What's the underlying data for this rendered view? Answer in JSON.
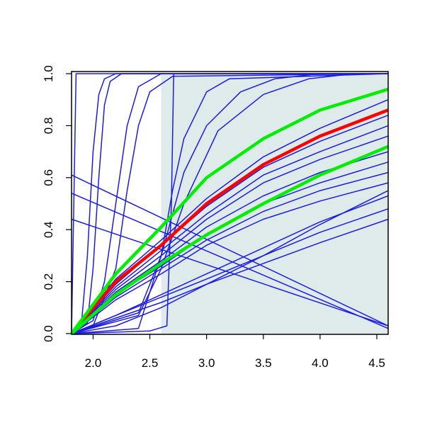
{
  "chart_data": {
    "type": "line",
    "xlim": [
      1.81,
      4.6
    ],
    "ylim": [
      0,
      1
    ],
    "xticks": [
      {
        "value": 2,
        "label": "2.0"
      },
      2.5,
      {
        "value": 3,
        "label": "3.0"
      },
      3.5,
      {
        "value": 4,
        "label": "4.0"
      },
      4.5
    ],
    "yticks": [
      {
        "value": 0,
        "label": "0.0"
      },
      0.2,
      0.4,
      0.6,
      0.8,
      {
        "value": 1,
        "label": "1.0"
      }
    ],
    "highlight": {
      "xmin": 2.6,
      "color": "#dfeaea"
    },
    "series": [
      {
        "color": "#1c1ce0",
        "width": 1.5,
        "x": [
          1.81,
          1.83,
          1.85,
          4.6
        ],
        "values": [
          0,
          0.5,
          1,
          1
        ]
      },
      {
        "color": "#1c1ce0",
        "width": 1.5,
        "x": [
          1.81,
          1.9,
          1.95,
          2.0,
          2.05,
          2.1,
          2.2,
          4.6
        ],
        "values": [
          0,
          0.05,
          0.3,
          0.7,
          0.92,
          0.98,
          1,
          1
        ]
      },
      {
        "color": "#1c1ce0",
        "width": 1.5,
        "x": [
          1.81,
          1.95,
          2.0,
          2.05,
          2.1,
          2.15,
          2.25,
          4.6
        ],
        "values": [
          0,
          0.04,
          0.25,
          0.6,
          0.88,
          0.97,
          1,
          1
        ]
      },
      {
        "color": "#1c1ce0",
        "width": 1.5,
        "x": [
          1.81,
          2.0,
          2.1,
          2.2,
          2.3,
          2.4,
          2.6,
          4.6
        ],
        "values": [
          0,
          0.05,
          0.2,
          0.5,
          0.8,
          0.95,
          1,
          1
        ]
      },
      {
        "color": "#1c1ce0",
        "width": 1.5,
        "x": [
          1.81,
          2.0,
          2.2,
          2.3,
          2.4,
          2.5,
          2.7,
          4.6
        ],
        "values": [
          0,
          0.03,
          0.25,
          0.55,
          0.8,
          0.93,
          0.99,
          1
        ]
      },
      {
        "color": "#1c1ce0",
        "width": 1.5,
        "x": [
          1.81,
          2.5,
          2.65,
          2.69,
          2.71,
          4.6
        ],
        "values": [
          0,
          0.01,
          0.03,
          0.5,
          1,
          1
        ]
      },
      {
        "color": "#1c1ce0",
        "width": 1.5,
        "x": [
          1.81,
          2.4,
          2.6,
          2.7,
          2.8,
          3.0,
          3.2,
          4.6
        ],
        "values": [
          0,
          0.02,
          0.3,
          0.55,
          0.75,
          0.93,
          0.98,
          1
        ]
      },
      {
        "color": "#1c1ce0",
        "width": 1.5,
        "x": [
          1.81,
          2.4,
          2.6,
          2.8,
          3.0,
          3.3,
          3.6,
          4.0,
          4.6
        ],
        "values": [
          0,
          0.08,
          0.3,
          0.62,
          0.8,
          0.93,
          0.98,
          1,
          1
        ]
      },
      {
        "color": "#1c1ce0",
        "width": 1.5,
        "x": [
          1.81,
          2.4,
          2.6,
          2.8,
          3.1,
          3.5,
          3.9,
          4.3,
          4.6
        ],
        "values": [
          0,
          0.07,
          0.25,
          0.5,
          0.78,
          0.92,
          0.98,
          1,
          1
        ]
      },
      {
        "color": "#1c1ce0",
        "width": 1.5,
        "x": [
          1.81,
          2.2,
          2.6,
          3.0,
          3.5,
          4.0,
          4.6
        ],
        "values": [
          0,
          0.21,
          0.36,
          0.52,
          0.68,
          0.79,
          0.9
        ]
      },
      {
        "color": "#1c1ce0",
        "width": 1.5,
        "x": [
          1.81,
          2.2,
          2.6,
          3.0,
          3.5,
          4.0,
          4.6
        ],
        "values": [
          0,
          0.19,
          0.34,
          0.49,
          0.64,
          0.74,
          0.84
        ]
      },
      {
        "color": "#1c1ce0",
        "width": 1.5,
        "x": [
          1.81,
          2.2,
          2.6,
          3.0,
          3.5,
          4.0,
          4.6
        ],
        "values": [
          0,
          0.18,
          0.32,
          0.46,
          0.61,
          0.7,
          0.8
        ]
      },
      {
        "color": "#1c1ce0",
        "width": 1.5,
        "x": [
          1.81,
          2.2,
          2.6,
          3.0,
          3.5,
          4.0,
          4.6
        ],
        "values": [
          0,
          0.17,
          0.3,
          0.44,
          0.58,
          0.67,
          0.76
        ]
      },
      {
        "color": "#1c1ce0",
        "width": 1.5,
        "x": [
          1.81,
          2.2,
          2.6,
          3.0,
          3.5,
          4.0,
          4.6
        ],
        "values": [
          0,
          0.16,
          0.28,
          0.41,
          0.53,
          0.62,
          0.7
        ]
      },
      {
        "color": "#1c1ce0",
        "width": 1.5,
        "x": [
          1.81,
          2.2,
          2.6,
          3.0,
          3.5,
          4.0,
          4.6
        ],
        "values": [
          0,
          0.15,
          0.26,
          0.38,
          0.5,
          0.58,
          0.66
        ]
      },
      {
        "color": "#1c1ce0",
        "width": 1.5,
        "x": [
          1.81,
          2.2,
          2.6,
          3.0,
          3.5,
          4.0,
          4.6
        ],
        "values": [
          0,
          0.14,
          0.25,
          0.36,
          0.47,
          0.55,
          0.62
        ]
      },
      {
        "color": "#1c1ce0",
        "width": 1.5,
        "x": [
          1.81,
          2.2,
          2.6,
          3.0,
          3.5,
          4.0,
          4.6
        ],
        "values": [
          0,
          0.13,
          0.23,
          0.34,
          0.44,
          0.51,
          0.58
        ]
      },
      {
        "color": "#1c1ce0",
        "width": 1.5,
        "x": [
          1.81,
          2.2,
          2.6,
          3.0,
          3.5,
          4.0,
          4.6
        ],
        "values": [
          0,
          0.07,
          0.15,
          0.23,
          0.33,
          0.43,
          0.53
        ]
      },
      {
        "color": "#1c1ce0",
        "width": 1.5,
        "x": [
          1.81,
          2.2,
          2.6,
          3.0,
          3.5,
          4.0,
          4.6
        ],
        "values": [
          0,
          0.07,
          0.14,
          0.21,
          0.3,
          0.39,
          0.48
        ]
      },
      {
        "color": "#1c1ce0",
        "width": 1.5,
        "x": [
          1.81,
          2.2,
          2.6,
          3.0,
          3.5,
          4.0,
          4.6
        ],
        "values": [
          0,
          0.06,
          0.12,
          0.19,
          0.27,
          0.35,
          0.44
        ]
      },
      {
        "color": "#1c1ce0",
        "width": 1.5,
        "x": [
          1.81,
          2.2,
          2.6,
          3.0,
          3.5,
          4.0,
          4.6
        ],
        "values": [
          0,
          0.03,
          0.1,
          0.19,
          0.3,
          0.42,
          0.55
        ]
      },
      {
        "color": "#1c1ce0",
        "width": 1.5,
        "x": [
          1.81,
          4.6
        ],
        "values": [
          0.61,
          0.03
        ]
      },
      {
        "color": "#1c1ce0",
        "width": 1.5,
        "x": [
          1.81,
          4.6
        ],
        "values": [
          0.54,
          0.02
        ]
      },
      {
        "color": "#1c1ce0",
        "width": 1.5,
        "x": [
          1.81,
          4.6
        ],
        "values": [
          0.44,
          0.03
        ]
      },
      {
        "color": "#ff0000",
        "width": 4.5,
        "x": [
          1.81,
          2.2,
          2.6,
          3.0,
          3.5,
          4.0,
          4.6
        ],
        "values": [
          0,
          0.2,
          0.34,
          0.5,
          0.65,
          0.76,
          0.86
        ]
      },
      {
        "color": "#00ee00",
        "width": 4.5,
        "x": [
          1.81,
          2.2,
          2.6,
          3.0,
          3.5,
          4.0,
          4.6
        ],
        "values": [
          0,
          0.23,
          0.41,
          0.6,
          0.75,
          0.86,
          0.94
        ]
      },
      {
        "color": "#00ee00",
        "width": 4.5,
        "x": [
          1.81,
          2.2,
          2.6,
          3.0,
          3.5,
          4.0,
          4.6
        ],
        "values": [
          0,
          0.15,
          0.27,
          0.38,
          0.5,
          0.61,
          0.72
        ]
      }
    ]
  }
}
